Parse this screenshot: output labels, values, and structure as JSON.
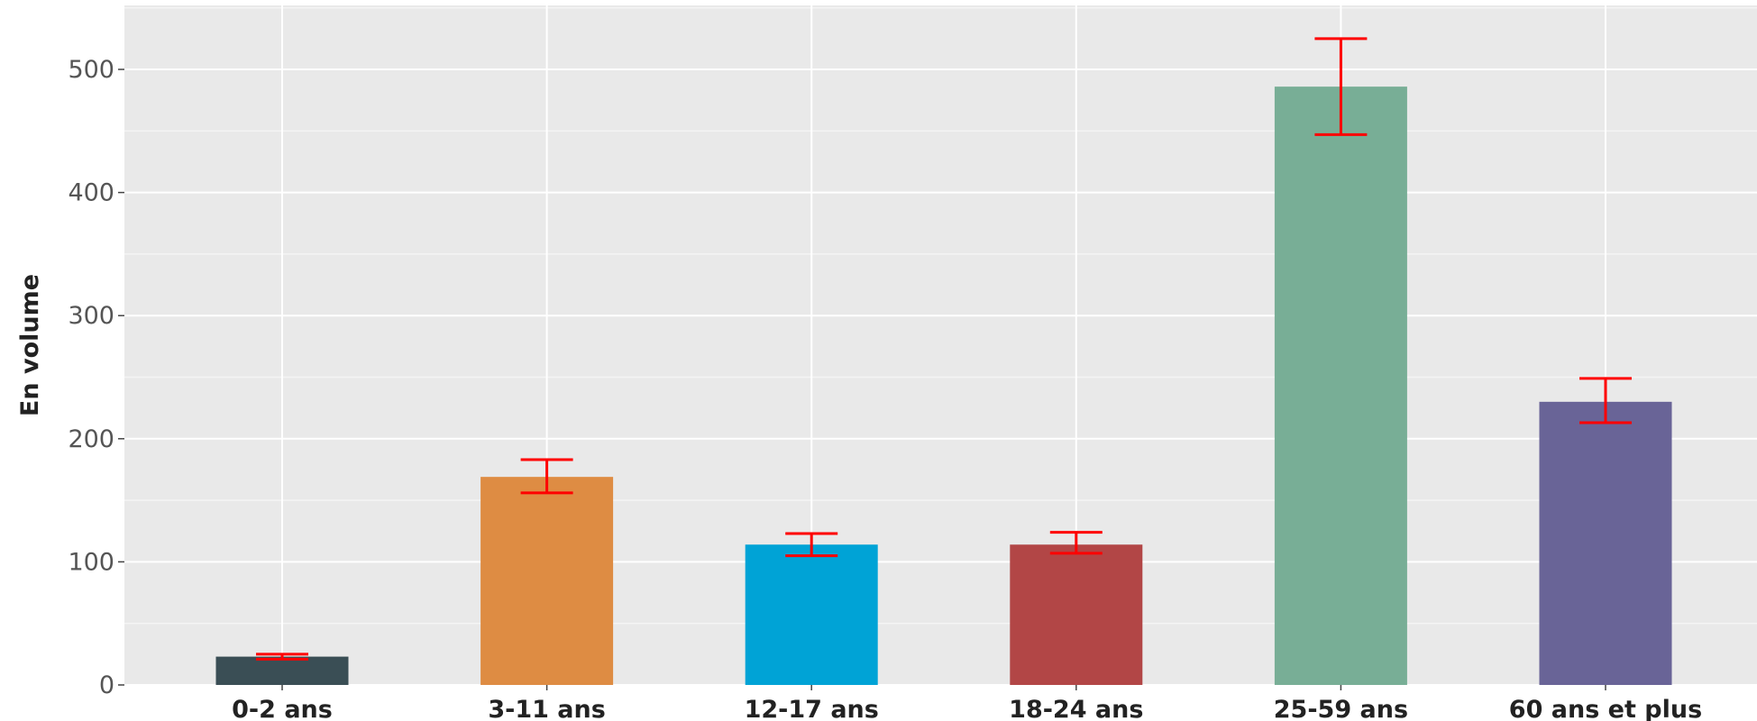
{
  "chart_data": {
    "type": "bar",
    "title": "",
    "xlabel": "",
    "ylabel": "En volume",
    "categories": [
      "0-2 ans",
      "3-11 ans",
      "12-17 ans",
      "18-24 ans",
      "25-59 ans",
      "60 ans et plus"
    ],
    "values": [
      23,
      169,
      114,
      114,
      486,
      230
    ],
    "error_low": [
      21,
      156,
      105,
      107,
      447,
      213
    ],
    "error_high": [
      25,
      183,
      123,
      124,
      525,
      249
    ],
    "colors": [
      "#3a4e55",
      "#de8c43",
      "#00a3d6",
      "#b24646",
      "#78ae96",
      "#696497"
    ],
    "error_color": "#ff0000",
    "ylim": [
      0,
      550
    ],
    "yticks": [
      0,
      100,
      200,
      300,
      400,
      500
    ],
    "grid": true,
    "background": "#e9e9e9",
    "legend": "none"
  }
}
